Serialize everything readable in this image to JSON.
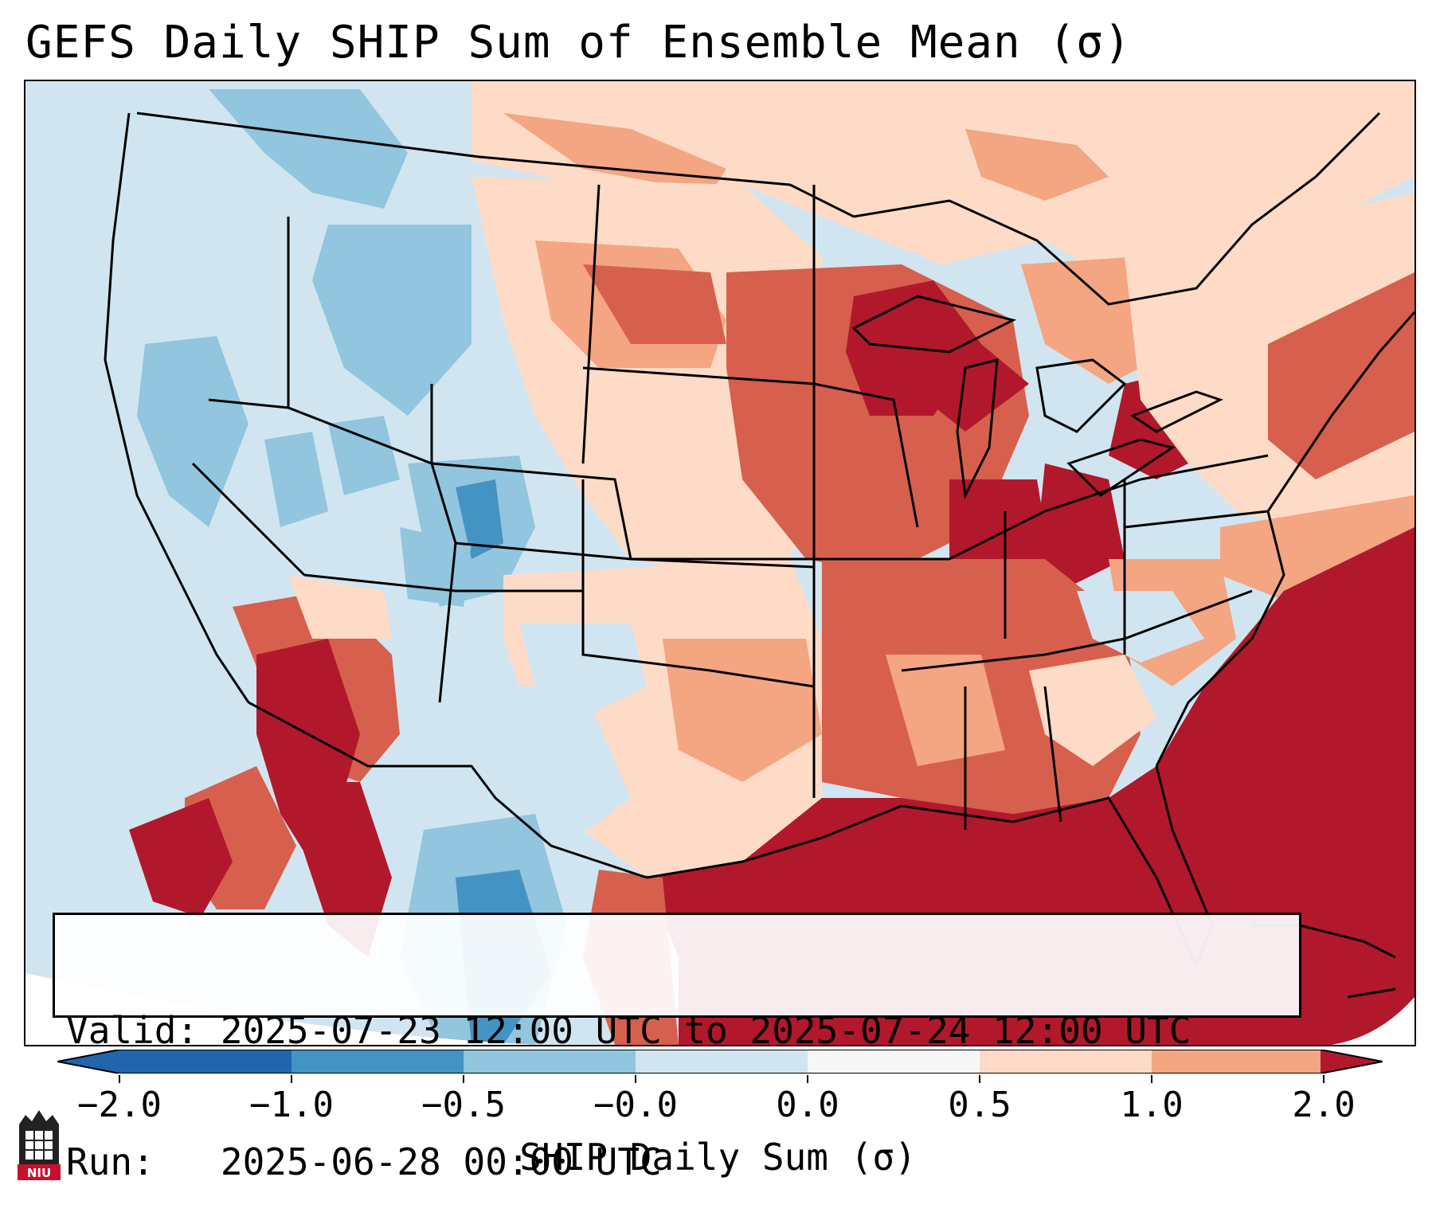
{
  "title": "GEFS Daily SHIP Sum of Ensemble Mean (σ)",
  "info": {
    "valid_label": "Valid:",
    "valid_value": "2025-07-23 12:00 UTC to 2025-07-24 12:00 UTC",
    "run_label": "Run:",
    "run_value": "2025-06-28 00:00 UTC"
  },
  "colorbar": {
    "label": "SHIP Daily Sum (σ)",
    "ticks": [
      "−2.0",
      "−1.0",
      "−0.5",
      "−0.0",
      "0.0",
      "0.5",
      "1.0",
      "2.0"
    ],
    "colors": [
      "#2166ac",
      "#4393c3",
      "#92c5de",
      "#d1e5f0",
      "#f7f7f7",
      "#fddbc7",
      "#f4a582",
      "#d6604d",
      "#b2182b"
    ]
  },
  "logo": {
    "text": "NIU",
    "color": "#c8102e"
  }
}
